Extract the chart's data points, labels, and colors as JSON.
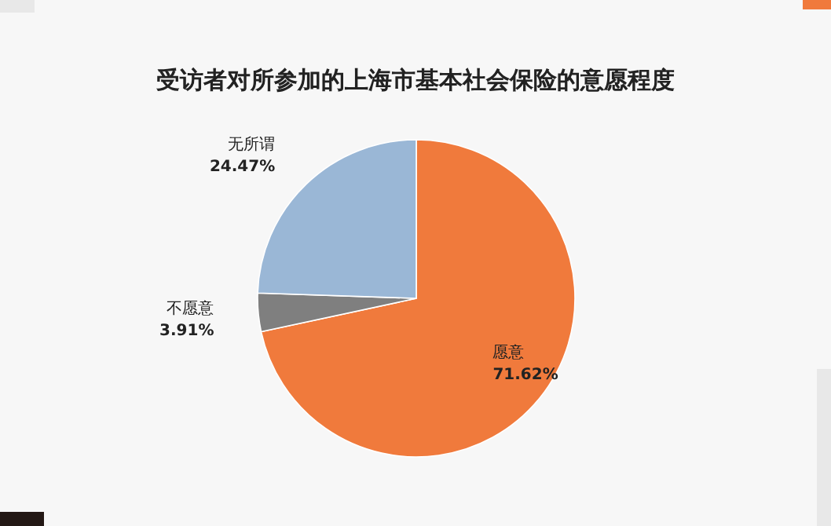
{
  "chart_data": {
    "type": "pie",
    "title": "受访者对所参加的上海市基本社会保险的意愿程度",
    "categories": [
      "愿意",
      "不愿意",
      "无所谓"
    ],
    "values": [
      71.62,
      3.91,
      24.47
    ],
    "colors": [
      "#f07a3c",
      "#7f7f7f",
      "#9ab7d6"
    ],
    "value_labels": [
      "71.62%",
      "3.91%",
      "24.47%"
    ]
  }
}
